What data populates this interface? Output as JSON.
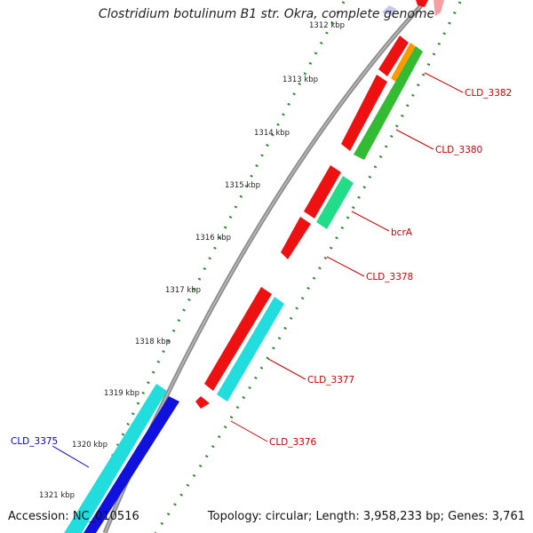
{
  "title": "Clostridium botulinum B1 str. Okra, complete genome",
  "accession": "Accession: NC_010516",
  "summary": "Topology: circular; Length: 3,958,233 bp; Genes: 3,761",
  "colors": {
    "backbone": "#8c8c8c",
    "tick": "#2e8b2e",
    "red_gene": "#ee1111",
    "green_gene": "#33bb33",
    "orange_gene": "#ff9900",
    "spring_gene": "#22dd88",
    "cyan_gene": "#22dddd",
    "blue_gene": "#1111dd",
    "label_red": "#cc0000",
    "label_blue": "#0000cc"
  },
  "ticks": [
    "1312 kbp",
    "1313 kbp",
    "1314 kbp",
    "1315 kbp",
    "1316 kbp",
    "1317 kbp",
    "1318 kbp",
    "1319 kbp",
    "1320 kbp",
    "1321 kbp"
  ],
  "genes": [
    {
      "label": "CLD_3382",
      "color": "red"
    },
    {
      "label": "CLD_3380",
      "color": "red"
    },
    {
      "label": "bcrA",
      "color": "red"
    },
    {
      "label": "CLD_3378",
      "color": "red"
    },
    {
      "label": "CLD_3377",
      "color": "red"
    },
    {
      "label": "CLD_3376",
      "color": "red"
    },
    {
      "label": "CLD_3375",
      "color": "blue"
    }
  ]
}
